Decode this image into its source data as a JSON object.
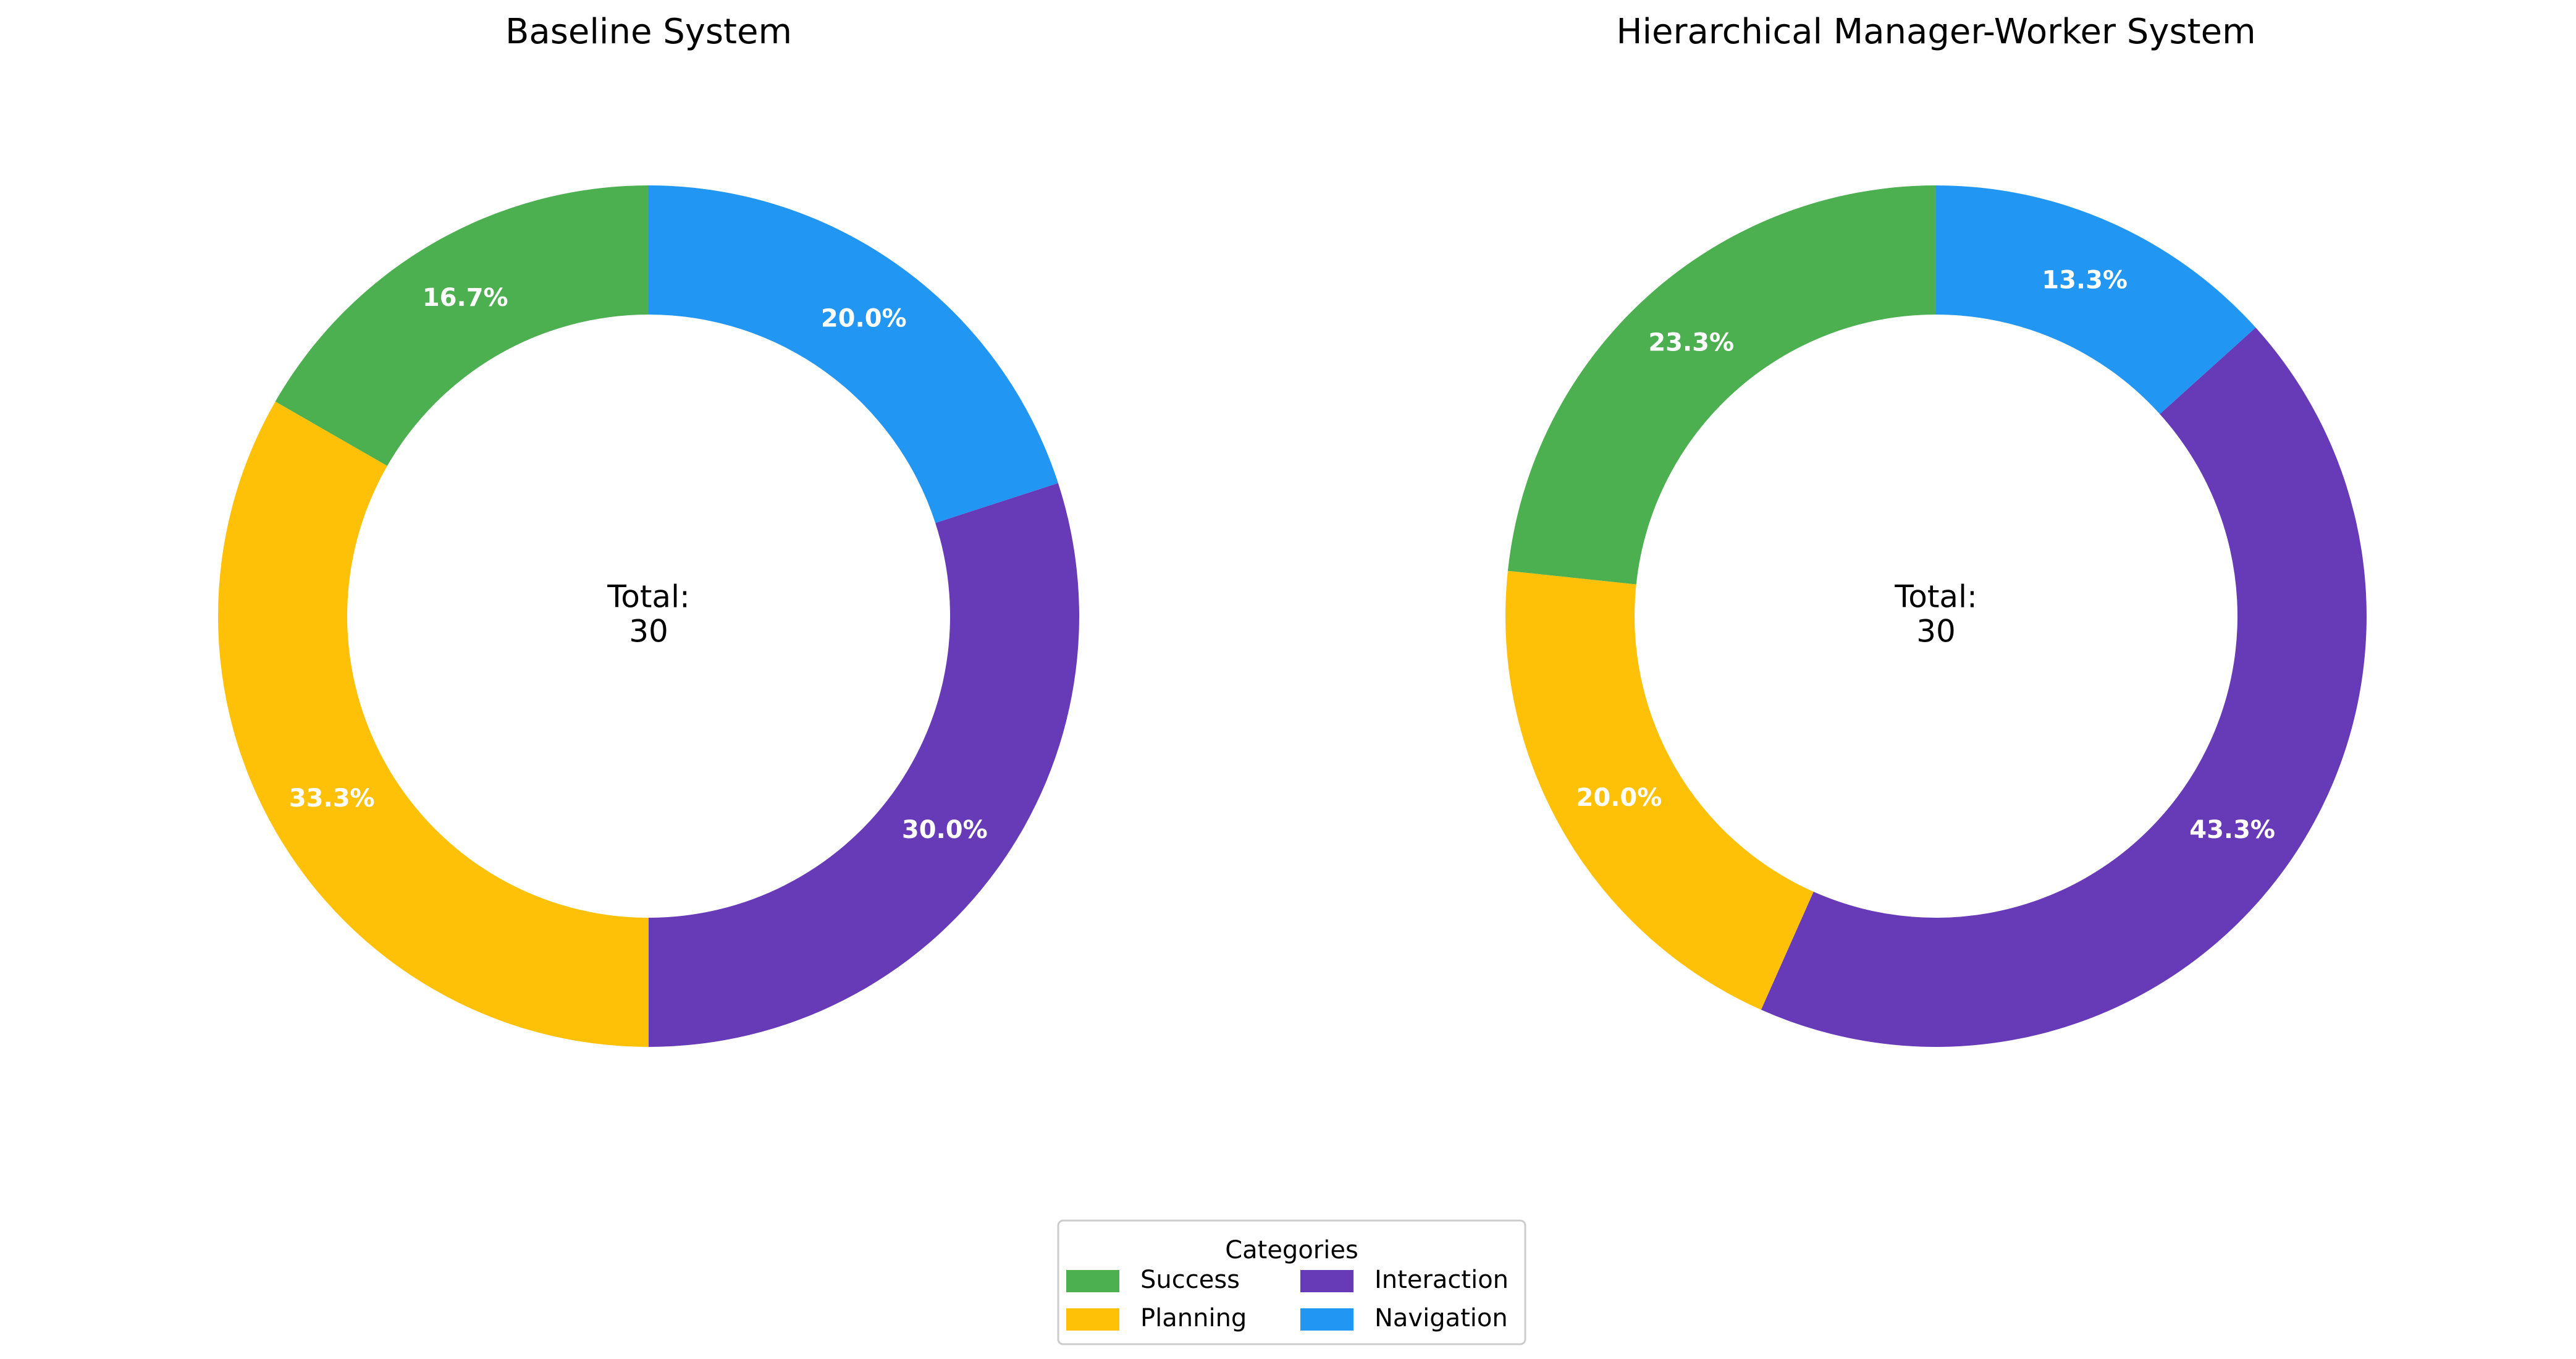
{
  "chart_data": [
    {
      "type": "pie",
      "title": "Baseline System",
      "center_label": [
        "Total:",
        "30"
      ],
      "categories": [
        "Success",
        "Planning",
        "Interaction",
        "Navigation"
      ],
      "values": [
        16.7,
        33.3,
        30.0,
        20.0
      ],
      "labels": [
        "16.7%",
        "33.3%",
        "30.0%",
        "20.0%"
      ],
      "colors": [
        "#4CAF50",
        "#FFC107",
        "#673AB7",
        "#2196F3"
      ]
    },
    {
      "type": "pie",
      "title": "Hierarchical Manager-Worker System",
      "center_label": [
        "Total:",
        "30"
      ],
      "categories": [
        "Success",
        "Planning",
        "Interaction",
        "Navigation"
      ],
      "values": [
        23.3,
        20.0,
        43.3,
        13.3
      ],
      "labels": [
        "23.3%",
        "20.0%",
        "43.3%",
        "13.3%"
      ],
      "colors": [
        "#4CAF50",
        "#FFC107",
        "#673AB7",
        "#2196F3"
      ]
    }
  ],
  "legend": {
    "title": "Categories",
    "placement": "bottom-center",
    "items": [
      {
        "label": "Success",
        "color": "#4CAF50"
      },
      {
        "label": "Planning",
        "color": "#FFC107"
      },
      {
        "label": "Interaction",
        "color": "#673AB7"
      },
      {
        "label": "Navigation",
        "color": "#2196F3"
      }
    ]
  }
}
